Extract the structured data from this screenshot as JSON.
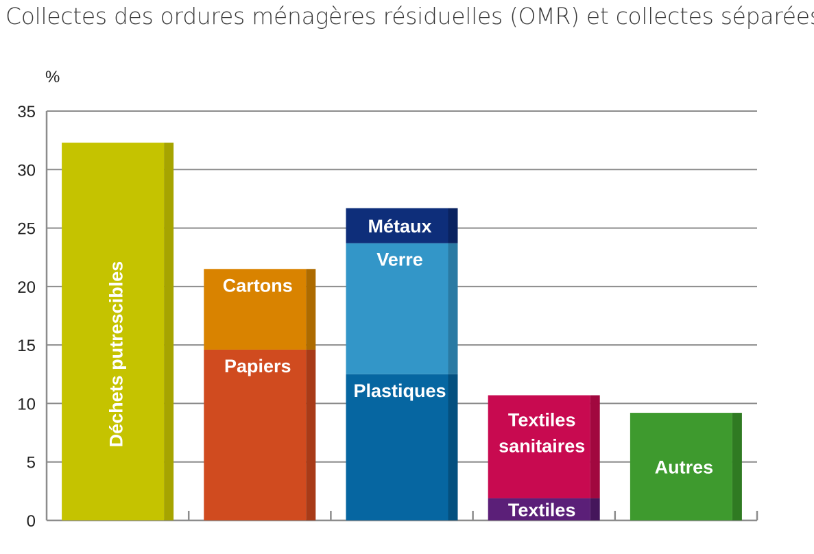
{
  "chart_data": {
    "type": "bar",
    "stacked": true,
    "title": "Collectes des ordures ménagères résiduelles (OMR) et collectes séparées",
    "ylabel": "%",
    "ylim": [
      0,
      35
    ],
    "yticks": [
      0,
      5,
      10,
      15,
      20,
      25,
      30,
      35
    ],
    "grid": true,
    "bars": [
      {
        "segments": [
          {
            "label": "Déchets putrescibles",
            "value": 32.3,
            "color": "#c5c300",
            "side": "#a6a400",
            "rotated": true
          }
        ]
      },
      {
        "segments": [
          {
            "label": "Papiers",
            "value": 14.6,
            "color": "#d04b1f",
            "side": "#a83b18"
          },
          {
            "label": "Cartons",
            "value": 6.9,
            "color": "#d98300",
            "side": "#ad6b00"
          }
        ]
      },
      {
        "segments": [
          {
            "label": "Plastiques",
            "value": 12.5,
            "color": "#0666a1",
            "side": "#04507f"
          },
          {
            "label": "Verre",
            "value": 11.2,
            "color": "#3396c8",
            "side": "#2a7aa3"
          },
          {
            "label": "Métaux",
            "value": 3.0,
            "color": "#0e2e7a",
            "side": "#0a2360"
          }
        ]
      },
      {
        "segments": [
          {
            "label": "Textiles",
            "value": 1.9,
            "color": "#5b1f78",
            "side": "#45165b"
          },
          {
            "label": "Textiles\nsanitaires",
            "value": 8.8,
            "color": "#c80a50",
            "side": "#a1083f"
          }
        ]
      },
      {
        "segments": [
          {
            "label": "Autres",
            "value": 9.2,
            "color": "#3e9a2e",
            "side": "#2f7a22"
          }
        ]
      }
    ]
  }
}
